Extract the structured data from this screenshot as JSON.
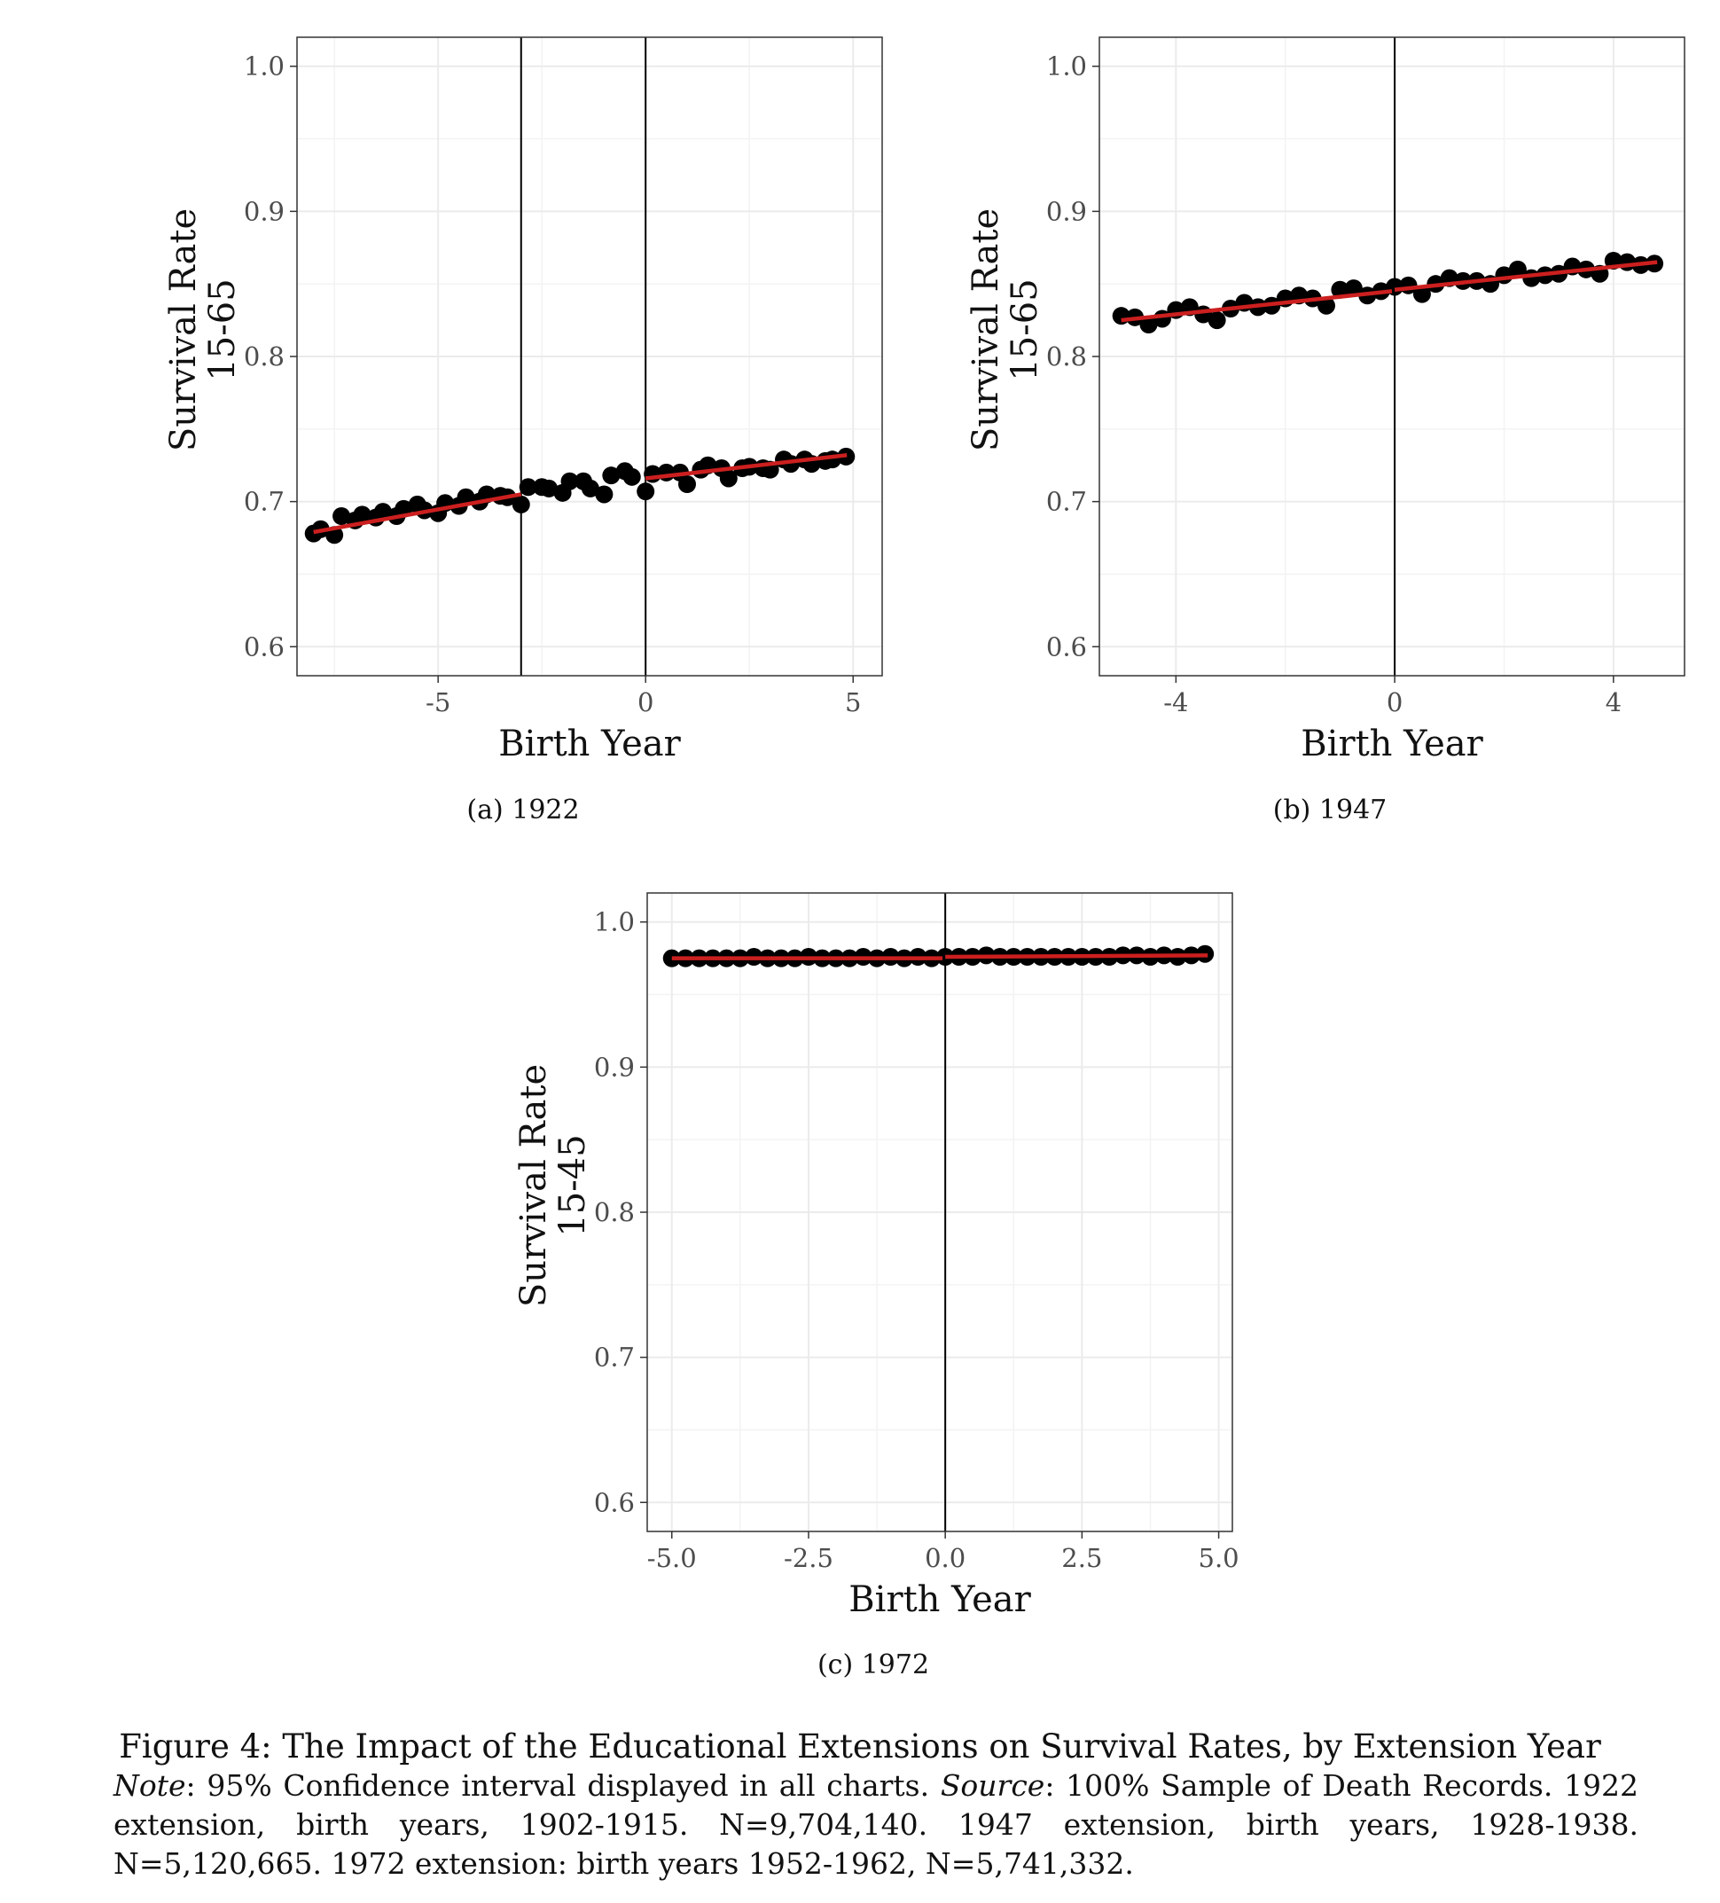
{
  "chart_data": [
    {
      "type": "scatter",
      "subcaption": "(a) 1922",
      "xlabel": "Birth Year",
      "ylabel_line1": "Survival Rate",
      "ylabel_line2": "15-65",
      "xlim": [
        -8.4,
        5.7
      ],
      "ylim": [
        0.58,
        1.02
      ],
      "xticks": [
        -5,
        0,
        5
      ],
      "xtick_labels": [
        "-5",
        "0",
        "5"
      ],
      "yticks": [
        0.6,
        0.7,
        0.8,
        0.9,
        1.0
      ],
      "ytick_labels": [
        "0.6",
        "0.7",
        "0.8",
        "0.9",
        "1.0"
      ],
      "vlines": [
        -3,
        0
      ],
      "points": [
        [
          -8.0,
          0.678
        ],
        [
          -7.83,
          0.681
        ],
        [
          -7.5,
          0.677
        ],
        [
          -7.33,
          0.69
        ],
        [
          -7.0,
          0.687
        ],
        [
          -6.83,
          0.691
        ],
        [
          -6.5,
          0.689
        ],
        [
          -6.33,
          0.693
        ],
        [
          -6.0,
          0.69
        ],
        [
          -5.83,
          0.695
        ],
        [
          -5.5,
          0.698
        ],
        [
          -5.33,
          0.694
        ],
        [
          -5.0,
          0.692
        ],
        [
          -4.83,
          0.699
        ],
        [
          -4.5,
          0.697
        ],
        [
          -4.33,
          0.703
        ],
        [
          -4.0,
          0.7
        ],
        [
          -3.83,
          0.705
        ],
        [
          -3.5,
          0.704
        ],
        [
          -3.33,
          0.703
        ],
        [
          -3.0,
          0.698
        ],
        [
          -2.83,
          0.71
        ],
        [
          -2.5,
          0.71
        ],
        [
          -2.33,
          0.709
        ],
        [
          -2.0,
          0.706
        ],
        [
          -1.83,
          0.714
        ],
        [
          -1.5,
          0.714
        ],
        [
          -1.33,
          0.709
        ],
        [
          -1.0,
          0.705
        ],
        [
          -0.83,
          0.718
        ],
        [
          -0.5,
          0.721
        ],
        [
          -0.33,
          0.717
        ],
        [
          0.0,
          0.707
        ],
        [
          0.17,
          0.719
        ],
        [
          0.5,
          0.72
        ],
        [
          0.83,
          0.72
        ],
        [
          1.0,
          0.712
        ],
        [
          1.33,
          0.722
        ],
        [
          1.5,
          0.725
        ],
        [
          1.83,
          0.723
        ],
        [
          2.0,
          0.716
        ],
        [
          2.33,
          0.723
        ],
        [
          2.5,
          0.724
        ],
        [
          2.83,
          0.723
        ],
        [
          3.0,
          0.722
        ],
        [
          3.33,
          0.729
        ],
        [
          3.5,
          0.726
        ],
        [
          3.83,
          0.729
        ],
        [
          4.0,
          0.726
        ],
        [
          4.33,
          0.728
        ],
        [
          4.5,
          0.729
        ],
        [
          4.83,
          0.731
        ]
      ],
      "fit_segments": [
        [
          [
            -8.0,
            0.679
          ],
          [
            -3.0,
            0.705
          ]
        ],
        [
          [
            0.0,
            0.716
          ],
          [
            4.85,
            0.732
          ]
        ]
      ]
    },
    {
      "type": "scatter",
      "subcaption": "(b) 1947",
      "xlabel": "Birth Year",
      "ylabel_line1": "Survival Rate",
      "ylabel_line2": "15-65",
      "xlim": [
        -5.4,
        5.3
      ],
      "ylim": [
        0.58,
        1.02
      ],
      "xticks": [
        -4,
        0,
        4
      ],
      "xtick_labels": [
        "-4",
        "0",
        "4"
      ],
      "yticks": [
        0.6,
        0.7,
        0.8,
        0.9,
        1.0
      ],
      "ytick_labels": [
        "0.6",
        "0.7",
        "0.8",
        "0.9",
        "1.0"
      ],
      "vlines": [
        0
      ],
      "points": [
        [
          -5.0,
          0.828
        ],
        [
          -4.75,
          0.827
        ],
        [
          -4.5,
          0.822
        ],
        [
          -4.25,
          0.826
        ],
        [
          -4.0,
          0.832
        ],
        [
          -3.75,
          0.834
        ],
        [
          -3.5,
          0.829
        ],
        [
          -3.25,
          0.825
        ],
        [
          -3.0,
          0.833
        ],
        [
          -2.75,
          0.837
        ],
        [
          -2.5,
          0.834
        ],
        [
          -2.25,
          0.835
        ],
        [
          -2.0,
          0.84
        ],
        [
          -1.75,
          0.842
        ],
        [
          -1.5,
          0.84
        ],
        [
          -1.25,
          0.835
        ],
        [
          -1.0,
          0.846
        ],
        [
          -0.75,
          0.847
        ],
        [
          -0.5,
          0.842
        ],
        [
          -0.25,
          0.845
        ],
        [
          0.0,
          0.848
        ],
        [
          0.25,
          0.849
        ],
        [
          0.5,
          0.843
        ],
        [
          0.75,
          0.85
        ],
        [
          1.0,
          0.854
        ],
        [
          1.25,
          0.852
        ],
        [
          1.5,
          0.852
        ],
        [
          1.75,
          0.85
        ],
        [
          2.0,
          0.856
        ],
        [
          2.25,
          0.86
        ],
        [
          2.5,
          0.854
        ],
        [
          2.75,
          0.856
        ],
        [
          3.0,
          0.857
        ],
        [
          3.25,
          0.862
        ],
        [
          3.5,
          0.86
        ],
        [
          3.75,
          0.857
        ],
        [
          4.0,
          0.866
        ],
        [
          4.25,
          0.865
        ],
        [
          4.5,
          0.863
        ],
        [
          4.75,
          0.864
        ]
      ],
      "fit_segments": [
        [
          [
            -5.0,
            0.825
          ],
          [
            -0.05,
            0.845
          ]
        ],
        [
          [
            0.0,
            0.846
          ],
          [
            4.8,
            0.865
          ]
        ]
      ]
    },
    {
      "type": "scatter",
      "subcaption": "(c) 1972",
      "xlabel": "Birth Year",
      "ylabel_line1": "Survival Rate",
      "ylabel_line2": "15-45",
      "xlim": [
        -5.45,
        5.25
      ],
      "ylim": [
        0.58,
        1.02
      ],
      "xticks": [
        -5,
        -2.5,
        0,
        2.5,
        5
      ],
      "xtick_labels": [
        "-5.0",
        "-2.5",
        "0.0",
        "2.5",
        "5.0"
      ],
      "yticks": [
        0.6,
        0.7,
        0.8,
        0.9,
        1.0
      ],
      "ytick_labels": [
        "0.6",
        "0.7",
        "0.8",
        "0.9",
        "1.0"
      ],
      "vlines": [
        0
      ],
      "points": [
        [
          -5.0,
          0.975
        ],
        [
          -4.75,
          0.975
        ],
        [
          -4.5,
          0.975
        ],
        [
          -4.25,
          0.975
        ],
        [
          -4.0,
          0.975
        ],
        [
          -3.75,
          0.975
        ],
        [
          -3.5,
          0.976
        ],
        [
          -3.25,
          0.975
        ],
        [
          -3.0,
          0.975
        ],
        [
          -2.75,
          0.975
        ],
        [
          -2.5,
          0.976
        ],
        [
          -2.25,
          0.975
        ],
        [
          -2.0,
          0.975
        ],
        [
          -1.75,
          0.975
        ],
        [
          -1.5,
          0.976
        ],
        [
          -1.25,
          0.975
        ],
        [
          -1.0,
          0.976
        ],
        [
          -0.75,
          0.975
        ],
        [
          -0.5,
          0.976
        ],
        [
          -0.25,
          0.975
        ],
        [
          0.0,
          0.976
        ],
        [
          0.25,
          0.976
        ],
        [
          0.5,
          0.976
        ],
        [
          0.75,
          0.977
        ],
        [
          1.0,
          0.976
        ],
        [
          1.25,
          0.976
        ],
        [
          1.5,
          0.976
        ],
        [
          1.75,
          0.976
        ],
        [
          2.0,
          0.976
        ],
        [
          2.25,
          0.976
        ],
        [
          2.5,
          0.976
        ],
        [
          2.75,
          0.976
        ],
        [
          3.0,
          0.976
        ],
        [
          3.25,
          0.977
        ],
        [
          3.5,
          0.977
        ],
        [
          3.75,
          0.976
        ],
        [
          4.0,
          0.977
        ],
        [
          4.25,
          0.976
        ],
        [
          4.5,
          0.977
        ],
        [
          4.75,
          0.978
        ]
      ],
      "fit_segments": [
        [
          [
            -5.0,
            0.975
          ],
          [
            -0.05,
            0.975
          ]
        ],
        [
          [
            0.0,
            0.976
          ],
          [
            4.8,
            0.977
          ]
        ]
      ]
    }
  ],
  "colors": {
    "points": "#000000",
    "fit_line": "#cc1f1f",
    "grid": "#ebebeb",
    "vline": "#000000"
  },
  "caption": {
    "title": "Figure 4: The Impact of the Educational Extensions on Survival Rates, by Extension Year",
    "note_label": "Note",
    "note_text": ":  95% Confidence interval displayed in all charts.  ",
    "source_label": "Source",
    "source_text": ":  100% Sample of Death Records.  1922 extension, birth years, 1902-1915.  N=9,704,140.  1947 extension, birth years, 1928-1938.  N=5,120,665. 1972 extension: birth years 1952-1962, N=5,741,332."
  }
}
